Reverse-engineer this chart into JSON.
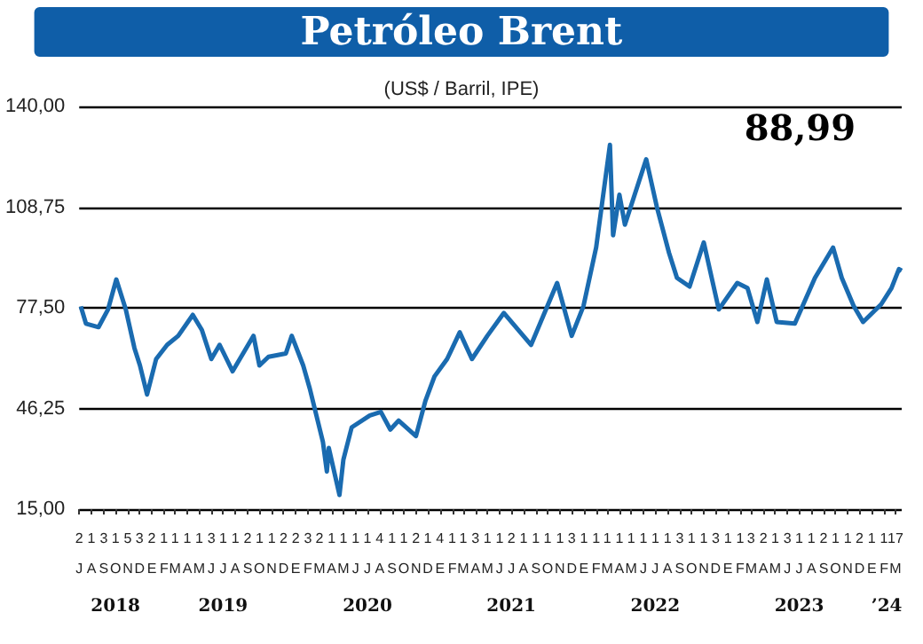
{
  "chart_data": {
    "type": "line",
    "title": "Petróleo Brent",
    "subtitle": "(US$ / Barril, IPE)",
    "annotations": [
      "88,99"
    ],
    "x": [
      "2018-07-05",
      "2018-07-18",
      "2018-08-19",
      "2018-09-12",
      "2018-10-03",
      "2018-10-27",
      "2018-11-18",
      "2018-12-02",
      "2018-12-20",
      "2019-01-12",
      "2019-02-09",
      "2019-03-09",
      "2019-04-15",
      "2019-05-08",
      "2019-06-01",
      "2019-06-22",
      "2019-07-25",
      "2019-09-16",
      "2019-10-01",
      "2019-10-24",
      "2019-12-07",
      "2019-12-22",
      "2020-01-20",
      "2020-02-06",
      "2020-03-10",
      "2020-03-20",
      "2020-03-25",
      "2020-04-21",
      "2020-05-01",
      "2020-05-22",
      "2020-07-07",
      "2020-08-04",
      "2020-08-28",
      "2020-09-18",
      "2020-11-01",
      "2020-11-25",
      "2020-12-18",
      "2021-01-19",
      "2021-02-20",
      "2021-03-23",
      "2021-05-01",
      "2021-06-12",
      "2021-08-20",
      "2021-10-25",
      "2021-12-01",
      "2021-12-31",
      "2022-02-01",
      "2022-03-08",
      "2022-03-16",
      "2022-04-01",
      "2022-04-15",
      "2022-06-08",
      "2022-07-05",
      "2022-08-05",
      "2022-08-25",
      "2022-09-26",
      "2022-11-01",
      "2022-12-09",
      "2023-01-25",
      "2023-02-20",
      "2023-03-17",
      "2023-04-10",
      "2023-05-05",
      "2023-06-20",
      "2023-08-10",
      "2023-09-25",
      "2023-10-17",
      "2023-11-16",
      "2023-12-10",
      "2024-01-25",
      "2024-02-20",
      "2024-03-10",
      "2024-03-17"
    ],
    "series": [
      {
        "color": "#1a6bb0",
        "values": [
          77.9,
          72.6,
          71.5,
          77,
          86.3,
          77,
          65,
          59.6,
          50.6,
          61.6,
          66,
          68.8,
          75.3,
          70.6,
          61.6,
          66,
          57.8,
          68.8,
          59.6,
          62.3,
          63.3,
          68.8,
          59.6,
          52.3,
          35.9,
          26.7,
          34,
          19.4,
          30.4,
          40.4,
          44.1,
          45.2,
          39.7,
          42.5,
          37.7,
          48.6,
          56.2,
          61.6,
          69.9,
          61.6,
          68.8,
          75.9,
          66,
          85.2,
          68.8,
          78.1,
          96.2,
          128.1,
          100,
          112.6,
          103.3,
          123.6,
          108.8,
          94.5,
          86.8,
          84.1,
          97.8,
          77,
          85.2,
          83.6,
          73.1,
          86.3,
          73.1,
          72.6,
          86.8,
          96.2,
          86.8,
          78.1,
          73.1,
          78.6,
          83.6,
          89.5,
          88.99
        ]
      }
    ],
    "xlim": [
      "2018-07-01",
      "2024-03-17"
    ],
    "xticks": [
      {
        "value": "2018-07-01",
        "label": "2\nJ"
      },
      {
        "value": "2018-08-01",
        "label": "1\nA"
      },
      {
        "value": "2018-09-01",
        "label": "3\nS"
      },
      {
        "value": "2018-10-01",
        "label": "1\nO"
      },
      {
        "value": "2018-11-01",
        "label": "5\nN"
      },
      {
        "value": "2018-12-01",
        "label": "3\nD"
      },
      {
        "value": "2019-01-01",
        "label": "2\nE"
      },
      {
        "value": "2019-02-01",
        "label": "1\nF"
      },
      {
        "value": "2019-03-01",
        "label": "1\nM"
      },
      {
        "value": "2019-04-01",
        "label": "1\nA"
      },
      {
        "value": "2019-05-01",
        "label": "1\nM"
      },
      {
        "value": "2019-06-01",
        "label": "3\nJ"
      },
      {
        "value": "2019-07-01",
        "label": "1\nJ"
      },
      {
        "value": "2019-08-01",
        "label": "1\nA"
      },
      {
        "value": "2019-09-01",
        "label": "2\nS"
      },
      {
        "value": "2019-10-01",
        "label": "1\nO"
      },
      {
        "value": "2019-11-01",
        "label": "1\nN"
      },
      {
        "value": "2019-12-01",
        "label": "2\nD"
      },
      {
        "value": "2020-01-01",
        "label": "2\nE"
      },
      {
        "value": "2020-02-01",
        "label": "3\nF"
      },
      {
        "value": "2020-03-01",
        "label": "2\nM"
      },
      {
        "value": "2020-04-01",
        "label": "1\nA"
      },
      {
        "value": "2020-05-01",
        "label": "1\nM"
      },
      {
        "value": "2020-06-01",
        "label": "1\nJ"
      },
      {
        "value": "2020-07-01",
        "label": "1\nJ"
      },
      {
        "value": "2020-08-01",
        "label": "4\nA"
      },
      {
        "value": "2020-09-01",
        "label": "1\nS"
      },
      {
        "value": "2020-10-01",
        "label": "1\nO"
      },
      {
        "value": "2020-11-01",
        "label": "2\nN"
      },
      {
        "value": "2020-12-01",
        "label": "1\nD"
      },
      {
        "value": "2021-01-01",
        "label": "4\nE"
      },
      {
        "value": "2021-02-01",
        "label": "1\nF"
      },
      {
        "value": "2021-03-01",
        "label": "1\nM"
      },
      {
        "value": "2021-04-01",
        "label": "3\nA"
      },
      {
        "value": "2021-05-01",
        "label": "1\nM"
      },
      {
        "value": "2021-06-01",
        "label": "1\nJ"
      },
      {
        "value": "2021-07-01",
        "label": "2\nJ"
      },
      {
        "value": "2021-08-01",
        "label": "1\nA"
      },
      {
        "value": "2021-09-01",
        "label": "1\nS"
      },
      {
        "value": "2021-10-01",
        "label": "1\nO"
      },
      {
        "value": "2021-11-01",
        "label": "1\nN"
      },
      {
        "value": "2021-12-01",
        "label": "3\nD"
      },
      {
        "value": "2022-01-01",
        "label": "1\nE"
      },
      {
        "value": "2022-02-01",
        "label": "1\nF"
      },
      {
        "value": "2022-03-01",
        "label": "1\nM"
      },
      {
        "value": "2022-04-01",
        "label": "1\nA"
      },
      {
        "value": "2022-05-01",
        "label": "1\nM"
      },
      {
        "value": "2022-06-01",
        "label": "1\nJ"
      },
      {
        "value": "2022-07-01",
        "label": "1\nJ"
      },
      {
        "value": "2022-08-01",
        "label": "1\nA"
      },
      {
        "value": "2022-09-01",
        "label": "3\nS"
      },
      {
        "value": "2022-10-01",
        "label": "1\nO"
      },
      {
        "value": "2022-11-01",
        "label": "1\nN"
      },
      {
        "value": "2022-12-01",
        "label": "3\nD"
      },
      {
        "value": "2023-01-01",
        "label": "1\nE"
      },
      {
        "value": "2023-02-01",
        "label": "1\nF"
      },
      {
        "value": "2023-03-01",
        "label": "3\nM"
      },
      {
        "value": "2023-04-01",
        "label": "2\nA"
      },
      {
        "value": "2023-05-01",
        "label": "1\nM"
      },
      {
        "value": "2023-06-01",
        "label": "3\nJ"
      },
      {
        "value": "2023-07-01",
        "label": "1\nJ"
      },
      {
        "value": "2023-08-01",
        "label": "1\nA"
      },
      {
        "value": "2023-09-01",
        "label": "2\nS"
      },
      {
        "value": "2023-10-01",
        "label": "1\nO"
      },
      {
        "value": "2023-11-01",
        "label": "1\nN"
      },
      {
        "value": "2023-12-01",
        "label": "2\nD"
      },
      {
        "value": "2024-01-01",
        "label": "1\nE"
      },
      {
        "value": "2024-02-01",
        "label": "1\nF"
      },
      {
        "value": "2024-03-01",
        "label": "17\nM"
      }
    ],
    "x2lim": [
      "2018-07-01",
      "2024-03-17"
    ],
    "x2ticks": [
      {
        "value": "2018-10-01",
        "label": "2018"
      },
      {
        "value": "2019-07-01",
        "label": "2019"
      },
      {
        "value": "2020-07-01",
        "label": "2020"
      },
      {
        "value": "2021-07-01",
        "label": "2021"
      },
      {
        "value": "2022-07-01",
        "label": "2022"
      },
      {
        "value": "2023-07-01",
        "label": "2023"
      },
      {
        "value": "2024-02-08",
        "label": "’24"
      }
    ],
    "ylim": [
      15,
      140
    ],
    "yticks": [
      {
        "value": 15,
        "label": "15,00"
      },
      {
        "value": 46.25,
        "label": "46,25"
      },
      {
        "value": 77.5,
        "label": "77,50"
      },
      {
        "value": 108.75,
        "label": "108,75"
      },
      {
        "value": 140,
        "label": "140,00"
      }
    ],
    "grid": "y",
    "marker": "none",
    "line_style": "solid"
  }
}
